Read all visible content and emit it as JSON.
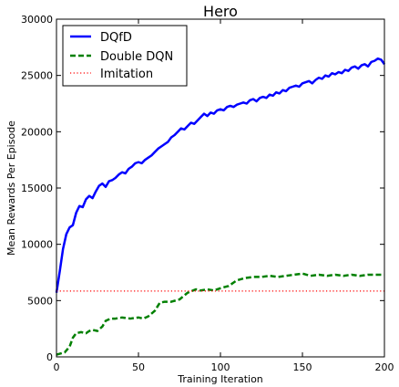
{
  "chart_data": {
    "type": "line",
    "title": "Hero",
    "xlabel": "Training Iteration",
    "ylabel": "Mean Rewards Per Episode",
    "xlim": [
      0,
      200
    ],
    "ylim": [
      0,
      30000
    ],
    "xticks": [
      "0",
      "50",
      "100",
      "150",
      "200"
    ],
    "yticks": [
      "0",
      "5000",
      "10000",
      "15000",
      "20000",
      "25000",
      "30000"
    ],
    "grid": false,
    "legend_position": "top-left",
    "series": [
      {
        "name": "DQfD",
        "color": "#0000ff",
        "style": "solid",
        "x": [
          0,
          2,
          4,
          6,
          8,
          10,
          12,
          14,
          16,
          18,
          20,
          22,
          24,
          26,
          28,
          30,
          32,
          34,
          36,
          38,
          40,
          42,
          44,
          46,
          48,
          50,
          52,
          54,
          56,
          58,
          60,
          62,
          64,
          66,
          68,
          70,
          72,
          74,
          76,
          78,
          80,
          82,
          84,
          86,
          88,
          90,
          92,
          94,
          96,
          98,
          100,
          102,
          104,
          106,
          108,
          110,
          112,
          114,
          116,
          118,
          120,
          122,
          124,
          126,
          128,
          130,
          132,
          134,
          136,
          138,
          140,
          142,
          144,
          146,
          148,
          150,
          152,
          154,
          156,
          158,
          160,
          162,
          164,
          166,
          168,
          170,
          172,
          174,
          176,
          178,
          180,
          182,
          184,
          186,
          188,
          190,
          192,
          194,
          196,
          198,
          200
        ],
        "values": [
          5700,
          7600,
          9600,
          10900,
          11500,
          11700,
          12800,
          13400,
          13300,
          14000,
          14300,
          14100,
          14700,
          15200,
          15400,
          15100,
          15600,
          15700,
          15900,
          16200,
          16400,
          16300,
          16700,
          16900,
          17200,
          17300,
          17200,
          17500,
          17700,
          17900,
          18200,
          18500,
          18700,
          18900,
          19100,
          19500,
          19700,
          20000,
          20300,
          20200,
          20500,
          20800,
          20700,
          21000,
          21300,
          21600,
          21400,
          21700,
          21600,
          21900,
          22000,
          21900,
          22200,
          22300,
          22200,
          22400,
          22500,
          22600,
          22500,
          22800,
          22900,
          22700,
          23000,
          23100,
          23000,
          23300,
          23200,
          23500,
          23400,
          23700,
          23600,
          23900,
          24000,
          24100,
          24000,
          24300,
          24400,
          24500,
          24300,
          24600,
          24800,
          24700,
          25000,
          24900,
          25200,
          25100,
          25300,
          25200,
          25500,
          25400,
          25700,
          25800,
          25600,
          25900,
          26000,
          25800,
          26200,
          26300,
          26500,
          26400,
          26000
        ]
      },
      {
        "name": "Double DQN",
        "color": "#008000",
        "style": "dashed",
        "x": [
          0,
          5,
          8,
          10,
          12,
          15,
          18,
          20,
          22,
          25,
          28,
          30,
          33,
          36,
          40,
          45,
          50,
          53,
          56,
          60,
          63,
          66,
          70,
          75,
          80,
          85,
          88,
          92,
          96,
          100,
          105,
          110,
          115,
          120,
          125,
          130,
          135,
          140,
          145,
          150,
          155,
          160,
          165,
          170,
          175,
          180,
          185,
          190,
          195,
          200
        ],
        "values": [
          200,
          400,
          900,
          1700,
          2100,
          2200,
          2100,
          2300,
          2400,
          2300,
          2700,
          3200,
          3400,
          3400,
          3500,
          3400,
          3500,
          3400,
          3600,
          4100,
          4800,
          4900,
          4900,
          5100,
          5700,
          6000,
          5900,
          6000,
          5900,
          6100,
          6300,
          6800,
          7000,
          7100,
          7100,
          7200,
          7100,
          7200,
          7300,
          7400,
          7200,
          7300,
          7200,
          7300,
          7200,
          7300,
          7200,
          7300,
          7300,
          7300
        ]
      },
      {
        "name": "Imitation",
        "color": "#ff0000",
        "style": "dotted",
        "x": [
          0,
          200
        ],
        "values": [
          5850,
          5850
        ]
      }
    ]
  }
}
